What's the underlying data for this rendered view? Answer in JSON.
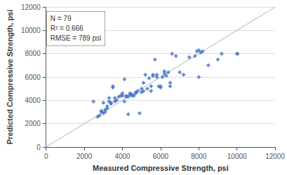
{
  "chart_data": {
    "type": "scatter",
    "xlabel": "Measured Compressive Strength, psi",
    "ylabel": "Predicted Compressive Strength, psi",
    "annotations": [
      "N = 79",
      "R² = 0.666",
      "RMSE = 789 psi"
    ],
    "xlim": [
      0,
      12000
    ],
    "ylim": [
      0,
      12000
    ],
    "xticks": [
      0,
      2000,
      4000,
      6000,
      8000,
      10000,
      12000
    ],
    "yticks": [
      0,
      2000,
      4000,
      6000,
      8000,
      10000,
      12000
    ],
    "grid": "y",
    "series": [
      {
        "type": "line",
        "color": "#b0b0b0",
        "x": [
          0,
          12000
        ],
        "values": [
          0,
          12000
        ]
      },
      {
        "type": "scatter",
        "marker": "diamond",
        "color": "#4472c4",
        "x": [
          2480,
          2700,
          2800,
          2900,
          2900,
          3000,
          3000,
          3100,
          3100,
          3200,
          3200,
          3300,
          3300,
          3400,
          3400,
          3500,
          3500,
          3600,
          3600,
          3700,
          3800,
          3900,
          4000,
          4000,
          4100,
          4100,
          4200,
          4200,
          4300,
          4300,
          4400,
          4400,
          4500,
          4500,
          4600,
          4700,
          4700,
          4800,
          4900,
          5000,
          5000,
          5100,
          5100,
          5200,
          5300,
          5400,
          5500,
          5500,
          5600,
          5600,
          5700,
          5800,
          5800,
          5900,
          6000,
          6000,
          6100,
          6200,
          6200,
          6300,
          6400,
          6500,
          6500,
          6600,
          6800,
          7000,
          7200,
          7500,
          7800,
          7900,
          8000,
          8000,
          8100,
          8200,
          8500,
          9000,
          9200,
          10000,
          10032
        ],
        "values": [
          3900,
          2600,
          2700,
          3000,
          3100,
          2900,
          3800,
          3000,
          3200,
          3300,
          3500,
          3900,
          4200,
          3700,
          3800,
          5100,
          5200,
          3900,
          4200,
          4000,
          4300,
          4400,
          4400,
          4600,
          3900,
          5800,
          4300,
          4400,
          2800,
          4300,
          4500,
          4600,
          4400,
          4500,
          4400,
          4600,
          4700,
          4800,
          2900,
          4700,
          5000,
          4800,
          5500,
          6200,
          5000,
          5900,
          4800,
          5200,
          6100,
          6200,
          7500,
          6000,
          6200,
          5200,
          5100,
          5200,
          6000,
          6300,
          6500,
          6100,
          6400,
          5200,
          5500,
          8000,
          7800,
          6400,
          6200,
          7700,
          7800,
          8200,
          6000,
          8300,
          8100,
          8200,
          7000,
          7500,
          8000,
          8000,
          8000
        ]
      }
    ]
  }
}
